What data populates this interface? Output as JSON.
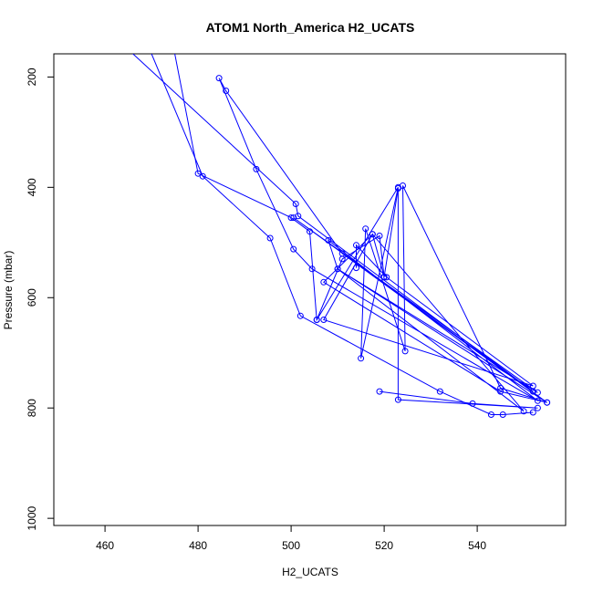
{
  "chart_data": {
    "type": "line",
    "title": "ATOM1 North_America H2_UCATS",
    "xlabel": "H2_UCATS",
    "ylabel": "Pressure (mbar)",
    "xlim": [
      449,
      559
    ],
    "ylim": [
      1013,
      158
    ],
    "y_reversed": true,
    "xticks": [
      460,
      480,
      500,
      520,
      540
    ],
    "yticks": [
      200,
      400,
      600,
      800,
      1000
    ],
    "grid": false,
    "line_color": "#0000ff",
    "marker": "open-circle",
    "series": [
      {
        "points": [
          [
            466,
            158
          ],
          [
            501,
            430
          ],
          [
            501.5,
            452
          ],
          [
            552,
            770
          ],
          [
            500.5,
            455
          ],
          [
            553,
            772
          ],
          [
            510,
            548
          ],
          [
            508,
            496
          ],
          [
            553,
            787
          ],
          [
            504.5,
            548
          ],
          [
            500.5,
            512
          ],
          [
            492.5,
            367
          ],
          [
            484.5,
            202
          ],
          [
            486,
            225
          ],
          [
            511,
            520
          ],
          [
            555,
            790
          ],
          [
            545,
            770
          ],
          [
            507,
            572
          ],
          [
            517.5,
            485
          ],
          [
            550,
            806
          ],
          [
            510,
            548
          ],
          [
            555,
            790
          ],
          [
            545,
            764
          ],
          [
            524,
            397
          ],
          [
            524.5,
            697
          ],
          [
            516,
            475
          ],
          [
            515,
            710
          ],
          [
            523,
            400
          ],
          [
            505.5,
            640
          ],
          [
            504,
            480
          ],
          [
            500,
            455
          ],
          [
            480,
            375
          ],
          [
            475,
            158
          ]
        ]
      },
      {
        "points": [
          [
            552,
            808
          ],
          [
            545.5,
            812
          ],
          [
            543,
            812
          ],
          [
            532,
            770
          ],
          [
            502,
            633
          ],
          [
            495.5,
            492
          ],
          [
            481,
            380
          ],
          [
            470,
            158
          ]
        ]
      },
      {
        "points": [
          [
            519,
            770
          ],
          [
            539,
            792
          ],
          [
            553,
            800
          ],
          [
            523,
            785
          ],
          [
            523,
            402
          ],
          [
            520,
            562
          ],
          [
            517.5,
            485
          ],
          [
            507,
            640
          ],
          [
            552,
            760
          ],
          [
            520.5,
            563
          ],
          [
            514,
            505
          ],
          [
            514,
            546
          ]
        ]
      },
      {
        "points": [
          [
            505.5,
            640
          ],
          [
            511,
            530
          ],
          [
            519,
            488
          ],
          [
            520,
            563
          ]
        ]
      }
    ]
  }
}
